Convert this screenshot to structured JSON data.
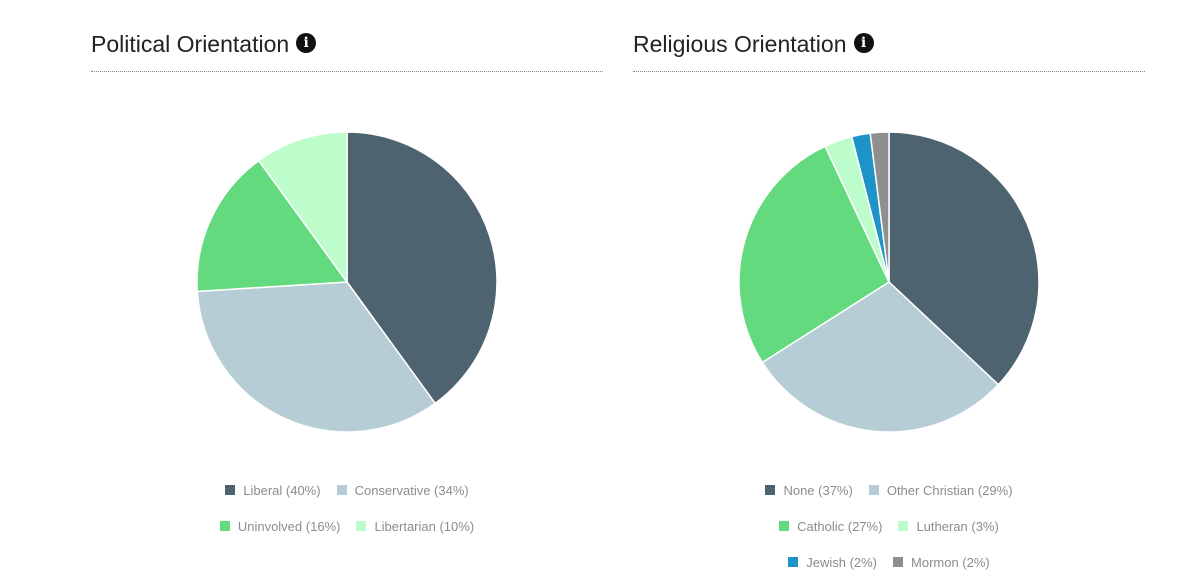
{
  "charts": [
    {
      "title": "Political Orientation",
      "info_icon": "info-icon",
      "chart_data": {
        "type": "pie",
        "slices": [
          {
            "label": "Liberal (40%)",
            "value": 40,
            "color": "#4e6370"
          },
          {
            "label": "Conservative (34%)",
            "value": 34,
            "color": "#b6cdd6"
          },
          {
            "label": "Uninvolved (16%)",
            "value": 16,
            "color": "#63da7d"
          },
          {
            "label": "Libertarian (10%)",
            "value": 10,
            "color": "#bdfdcb"
          }
        ],
        "legend_rows": [
          [
            0,
            1
          ],
          [
            2,
            3
          ]
        ]
      }
    },
    {
      "title": "Religious Orientation",
      "info_icon": "info-icon",
      "chart_data": {
        "type": "pie",
        "slices": [
          {
            "label": "None (37%)",
            "value": 37,
            "color": "#4e6370"
          },
          {
            "label": "Other Christian (29%)",
            "value": 29,
            "color": "#b6cdd6"
          },
          {
            "label": "Catholic (27%)",
            "value": 27,
            "color": "#63da7d"
          },
          {
            "label": "Lutheran (3%)",
            "value": 3,
            "color": "#bdfdcb"
          },
          {
            "label": "Jewish (2%)",
            "value": 2,
            "color": "#1e93c8"
          },
          {
            "label": "Mormon (2%)",
            "value": 2,
            "color": "#8f8f8f"
          }
        ],
        "legend_rows": [
          [
            0,
            1
          ],
          [
            2,
            3
          ],
          [
            4,
            5
          ]
        ]
      }
    }
  ]
}
